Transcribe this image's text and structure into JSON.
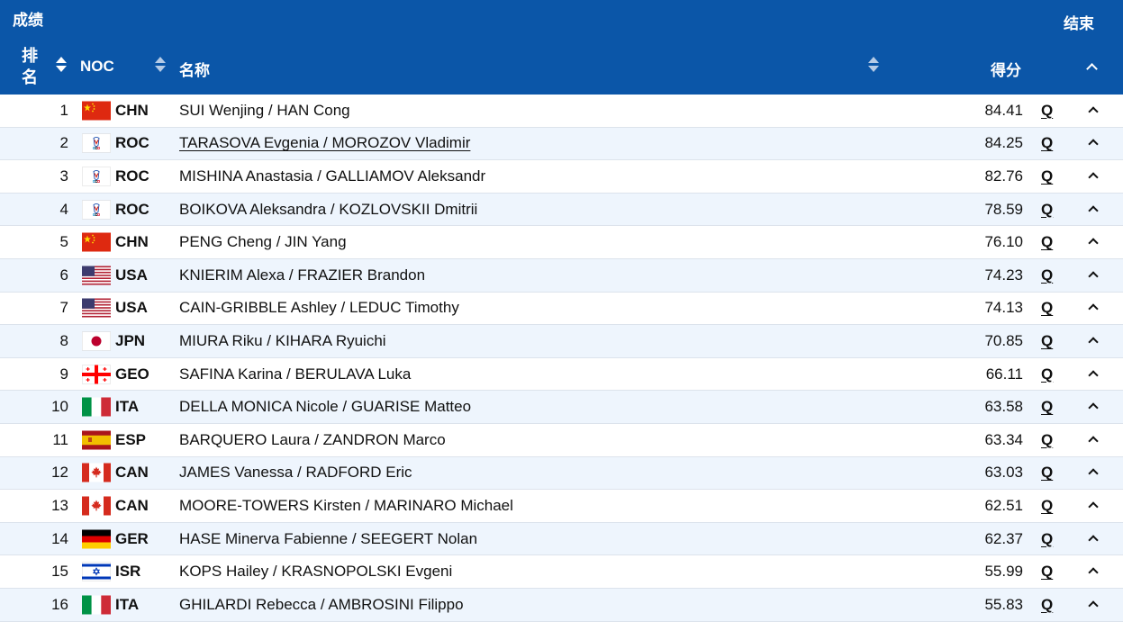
{
  "header": {
    "title": "成绩",
    "status": "结束",
    "columns": {
      "rank": "排名",
      "noc": "NOC",
      "name": "名称",
      "score": "得分"
    }
  },
  "rows": [
    {
      "rank": "1",
      "noc": "CHN",
      "flag": "chn",
      "name": "SUI Wenjing / HAN Cong",
      "score": "84.41",
      "q": "Q"
    },
    {
      "rank": "2",
      "noc": "ROC",
      "flag": "roc",
      "name": "TARASOVA Evgenia / MOROZOV Vladimir",
      "score": "84.25",
      "q": "Q"
    },
    {
      "rank": "3",
      "noc": "ROC",
      "flag": "roc",
      "name": "MISHINA Anastasia / GALLIAMOV Aleksandr",
      "score": "82.76",
      "q": "Q"
    },
    {
      "rank": "4",
      "noc": "ROC",
      "flag": "roc",
      "name": "BOIKOVA Aleksandra / KOZLOVSKII Dmitrii",
      "score": "78.59",
      "q": "Q"
    },
    {
      "rank": "5",
      "noc": "CHN",
      "flag": "chn",
      "name": "PENG Cheng / JIN Yang",
      "score": "76.10",
      "q": "Q"
    },
    {
      "rank": "6",
      "noc": "USA",
      "flag": "usa",
      "name": "KNIERIM Alexa / FRAZIER Brandon",
      "score": "74.23",
      "q": "Q"
    },
    {
      "rank": "7",
      "noc": "USA",
      "flag": "usa",
      "name": "CAIN-GRIBBLE Ashley / LEDUC Timothy",
      "score": "74.13",
      "q": "Q"
    },
    {
      "rank": "8",
      "noc": "JPN",
      "flag": "jpn",
      "name": "MIURA Riku / KIHARA Ryuichi",
      "score": "70.85",
      "q": "Q"
    },
    {
      "rank": "9",
      "noc": "GEO",
      "flag": "geo",
      "name": "SAFINA Karina / BERULAVA Luka",
      "score": "66.11",
      "q": "Q"
    },
    {
      "rank": "10",
      "noc": "ITA",
      "flag": "ita",
      "name": "DELLA MONICA Nicole / GUARISE Matteo",
      "score": "63.58",
      "q": "Q"
    },
    {
      "rank": "11",
      "noc": "ESP",
      "flag": "esp",
      "name": "BARQUERO Laura / ZANDRON Marco",
      "score": "63.34",
      "q": "Q"
    },
    {
      "rank": "12",
      "noc": "CAN",
      "flag": "can",
      "name": "JAMES Vanessa / RADFORD Eric",
      "score": "63.03",
      "q": "Q"
    },
    {
      "rank": "13",
      "noc": "CAN",
      "flag": "can",
      "name": "MOORE-TOWERS Kirsten / MARINARO Michael",
      "score": "62.51",
      "q": "Q"
    },
    {
      "rank": "14",
      "noc": "GER",
      "flag": "ger",
      "name": "HASE Minerva Fabienne / SEEGERT Nolan",
      "score": "62.37",
      "q": "Q"
    },
    {
      "rank": "15",
      "noc": "ISR",
      "flag": "isr",
      "name": "KOPS Hailey / KRASNOPOLSKI Evgeni",
      "score": "55.99",
      "q": "Q"
    },
    {
      "rank": "16",
      "noc": "ITA",
      "flag": "ita",
      "name": "GHILARDI Rebecca / AMBROSINI Filippo",
      "score": "55.83",
      "q": "Q"
    }
  ],
  "colors": {
    "header_bg": "#0b56a8",
    "row_alt": "#eef5fd"
  }
}
